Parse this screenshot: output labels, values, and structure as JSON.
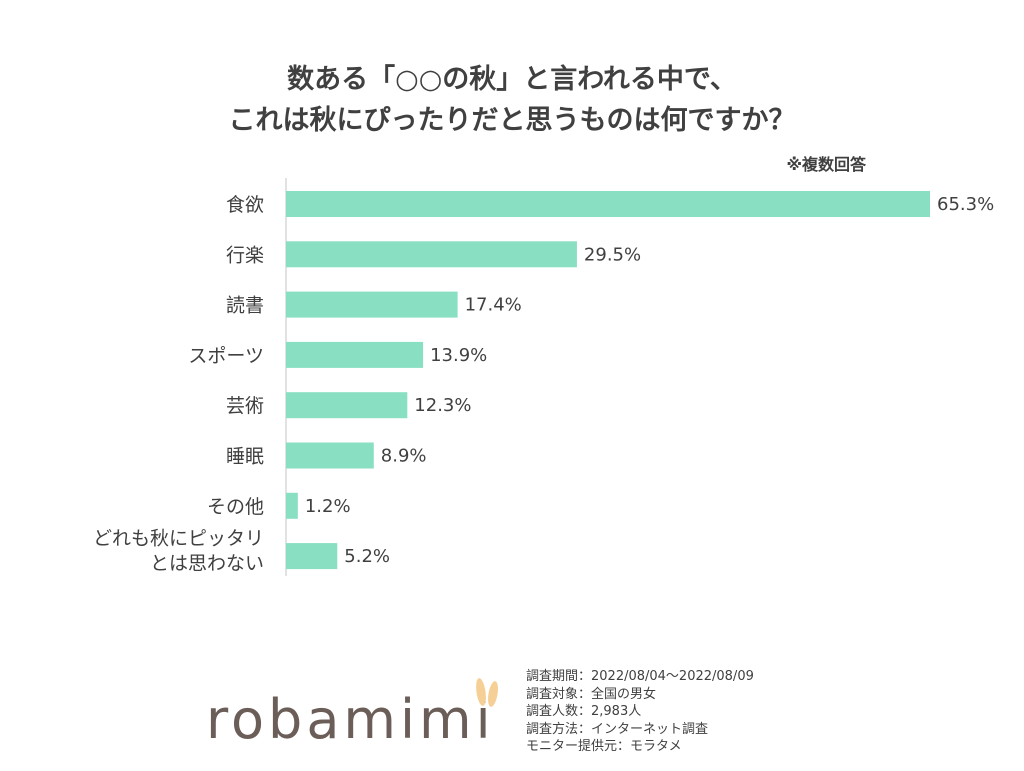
{
  "title_line1": "数ある「○○の秋」と言われる中で、",
  "title_line2": "これは秋にぴったりだと思うものは何ですか？",
  "note": "※複数回答",
  "colors": {
    "bar": "#88dfc2",
    "axis": "#d9d9d9",
    "logo": "#6b5d57",
    "ears": "#f6cf96"
  },
  "chart_data": {
    "type": "bar",
    "orientation": "horizontal",
    "title": "数ある「○○の秋」と言われる中で、これは秋にぴったりだと思うものは何ですか？",
    "xlabel": "",
    "ylabel": "",
    "xlim": [
      0,
      65.3
    ],
    "grid": false,
    "legend": "none",
    "unit": "%",
    "categories": [
      [
        "食欲"
      ],
      [
        "行楽"
      ],
      [
        "読書"
      ],
      [
        "スポーツ"
      ],
      [
        "芸術"
      ],
      [
        "睡眠"
      ],
      [
        "その他"
      ],
      [
        "どれも秋にピッタリ",
        "とは思わない"
      ]
    ],
    "values": [
      65.3,
      29.5,
      17.4,
      13.9,
      12.3,
      8.9,
      1.2,
      5.2
    ],
    "value_labels": [
      "65.3%",
      "29.5%",
      "17.4%",
      "13.9%",
      "12.3%",
      "8.9%",
      "1.2%",
      "5.2%"
    ]
  },
  "logo_text": "robamimi",
  "survey": [
    "調査期間：2022/08/04～2022/08/09",
    "調査対象：全国の男女",
    "調査人数：2,983人",
    "調査方法：インターネット調査",
    "モニター提供元：モラタメ"
  ]
}
